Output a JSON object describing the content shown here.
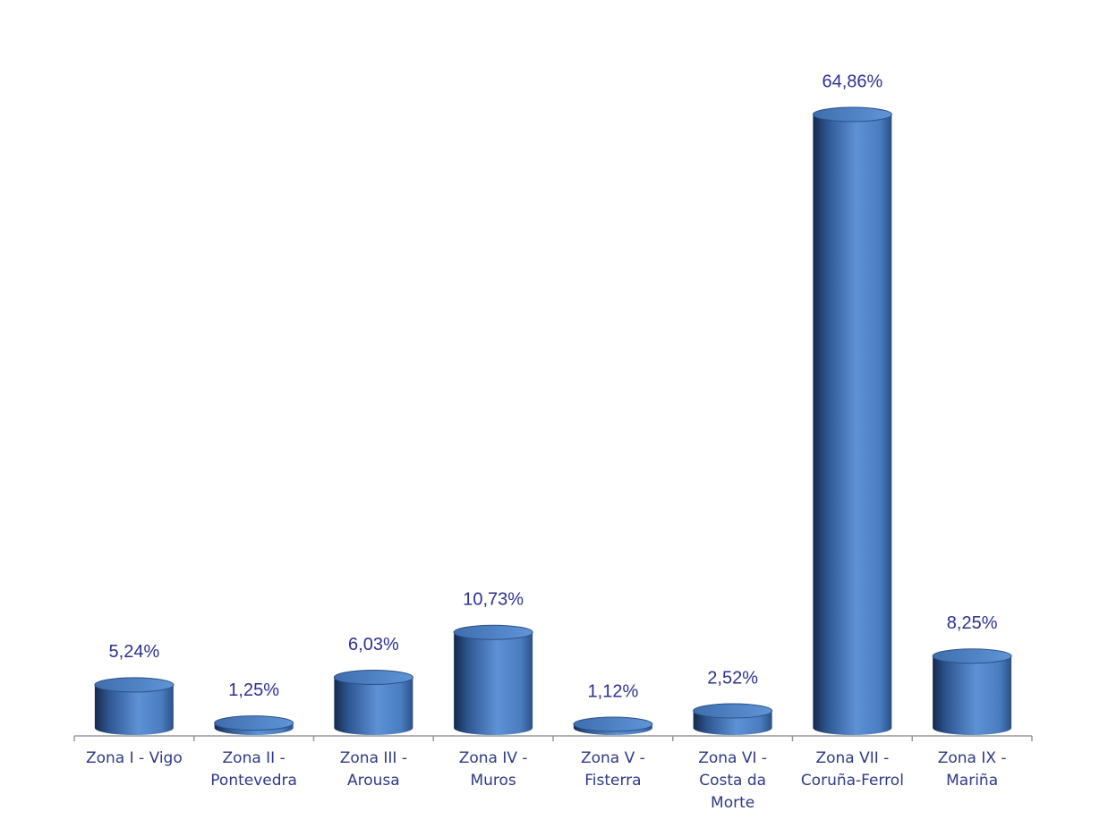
{
  "chart_data": {
    "type": "bar",
    "style": "cylinder",
    "categories": [
      "Zona I - Vigo",
      "Zona II - Pontevedra",
      "Zona III - Arousa",
      "Zona IV - Muros",
      "Zona V - Fisterra",
      "Zona VI - Costa da Morte",
      "Zona VII - Coruña-Ferrol",
      "Zona IX - Mariña"
    ],
    "values": [
      5.24,
      1.25,
      6.03,
      10.73,
      1.12,
      2.52,
      64.86,
      8.25
    ],
    "value_labels": [
      "5,24%",
      "1,25%",
      "6,03%",
      "10,73%",
      "1,12%",
      "2,52%",
      "64,86%",
      "8,25%"
    ],
    "color": "#4f81bd"
  }
}
